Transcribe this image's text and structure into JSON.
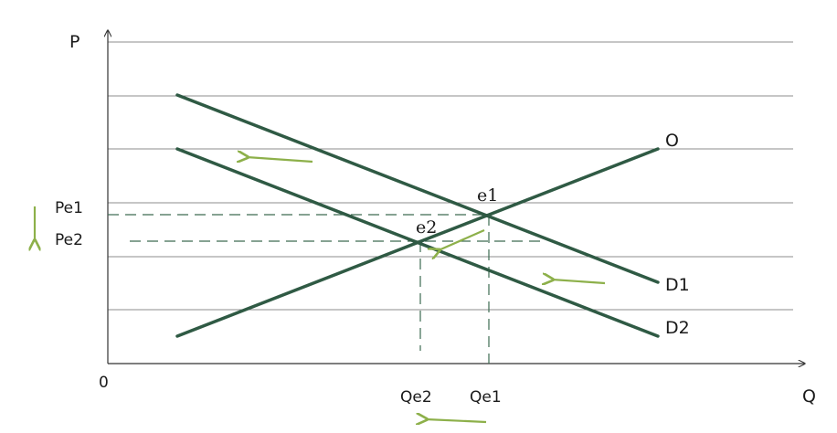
{
  "diagram": {
    "axes": {
      "y_label": "P",
      "x_label": "Q",
      "origin_label": "0"
    },
    "curves": [
      {
        "id": "supply",
        "label": "O"
      },
      {
        "id": "demand1",
        "label": "D1"
      },
      {
        "id": "demand2",
        "label": "D2"
      }
    ],
    "points": [
      {
        "id": "e1",
        "label": "e1"
      },
      {
        "id": "e2",
        "label": "e2"
      }
    ],
    "price_labels": {
      "pe1": "Pe1",
      "pe2": "Pe2"
    },
    "quantity_labels": {
      "qe1": "Qe1",
      "qe2": "Qe2"
    },
    "colors": {
      "curve": "#2f5a44",
      "dashed": "#3d6b52",
      "arrow": "#8db04a",
      "grid": "#8c8c8c",
      "axis": "#333333"
    }
  }
}
